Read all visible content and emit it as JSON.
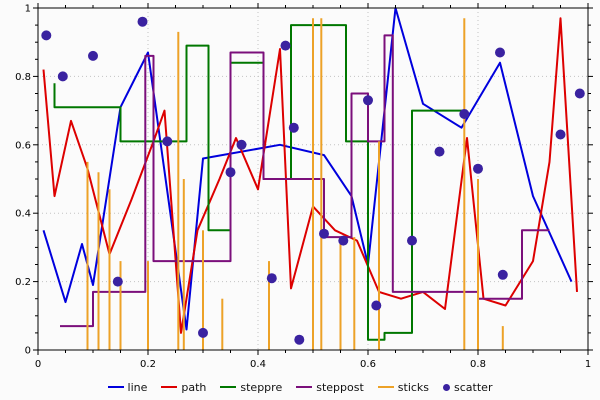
{
  "chart_data": {
    "type": "line",
    "title": "",
    "xlabel": "",
    "ylabel": "",
    "xlim": [
      0,
      1
    ],
    "ylim": [
      0,
      1
    ],
    "x_ticks": [
      0,
      0.2,
      0.4,
      0.6,
      0.8,
      1
    ],
    "y_ticks": [
      0,
      0.2,
      0.4,
      0.6,
      0.8,
      1
    ],
    "x_tick_labels": [
      "0",
      "0.2",
      "0.4",
      "0.6",
      "0.8",
      "1"
    ],
    "y_tick_labels": [
      "0",
      "0.2",
      "0.4",
      "0.6",
      "0.8",
      "1"
    ],
    "minor_tick_step": 0.05,
    "grid": true,
    "grid_style": "dotted",
    "frame": true,
    "legend_position": "bottom",
    "series": [
      {
        "name": "line",
        "style": "line",
        "color": "#0000dd",
        "points": [
          [
            0.01,
            0.35
          ],
          [
            0.05,
            0.14
          ],
          [
            0.08,
            0.31
          ],
          [
            0.1,
            0.19
          ],
          [
            0.15,
            0.71
          ],
          [
            0.2,
            0.87
          ],
          [
            0.27,
            0.06
          ],
          [
            0.3,
            0.56
          ],
          [
            0.44,
            0.6
          ],
          [
            0.52,
            0.57
          ],
          [
            0.57,
            0.45
          ],
          [
            0.6,
            0.25
          ],
          [
            0.65,
            1.0
          ],
          [
            0.7,
            0.72
          ],
          [
            0.77,
            0.65
          ],
          [
            0.84,
            0.84
          ],
          [
            0.9,
            0.45
          ],
          [
            0.97,
            0.2
          ]
        ]
      },
      {
        "name": "path",
        "style": "path",
        "color": "#dd0000",
        "points": [
          [
            0.01,
            0.82
          ],
          [
            0.03,
            0.45
          ],
          [
            0.06,
            0.67
          ],
          [
            0.09,
            0.53
          ],
          [
            0.13,
            0.28
          ],
          [
            0.17,
            0.44
          ],
          [
            0.21,
            0.61
          ],
          [
            0.23,
            0.7
          ],
          [
            0.26,
            0.05
          ],
          [
            0.29,
            0.35
          ],
          [
            0.33,
            0.5
          ],
          [
            0.36,
            0.62
          ],
          [
            0.4,
            0.47
          ],
          [
            0.44,
            0.88
          ],
          [
            0.46,
            0.18
          ],
          [
            0.5,
            0.42
          ],
          [
            0.54,
            0.35
          ],
          [
            0.58,
            0.32
          ],
          [
            0.62,
            0.17
          ],
          [
            0.66,
            0.15
          ],
          [
            0.7,
            0.17
          ],
          [
            0.74,
            0.12
          ],
          [
            0.78,
            0.62
          ],
          [
            0.81,
            0.15
          ],
          [
            0.85,
            0.13
          ],
          [
            0.9,
            0.26
          ],
          [
            0.93,
            0.55
          ],
          [
            0.95,
            0.97
          ],
          [
            0.98,
            0.17
          ]
        ]
      },
      {
        "name": "steppre",
        "style": "steppre",
        "color": "#007700",
        "points": [
          [
            0.03,
            0.78
          ],
          [
            0.15,
            0.71
          ],
          [
            0.27,
            0.61
          ],
          [
            0.31,
            0.89
          ],
          [
            0.35,
            0.35
          ],
          [
            0.41,
            0.84
          ],
          [
            0.46,
            0.5
          ],
          [
            0.56,
            0.95
          ],
          [
            0.6,
            0.61
          ],
          [
            0.63,
            0.03
          ],
          [
            0.68,
            0.05
          ],
          [
            0.78,
            0.7
          ]
        ]
      },
      {
        "name": "steppost",
        "style": "steppost",
        "color": "#7b0f7b",
        "points": [
          [
            0.04,
            0.07
          ],
          [
            0.1,
            0.17
          ],
          [
            0.195,
            0.86
          ],
          [
            0.21,
            0.26
          ],
          [
            0.35,
            0.87
          ],
          [
            0.41,
            0.5
          ],
          [
            0.52,
            0.33
          ],
          [
            0.57,
            0.75
          ],
          [
            0.6,
            0.61
          ],
          [
            0.63,
            0.92
          ],
          [
            0.645,
            0.17
          ],
          [
            0.8,
            0.15
          ],
          [
            0.88,
            0.35
          ],
          [
            0.93,
            0.35
          ]
        ]
      },
      {
        "name": "sticks",
        "style": "sticks",
        "color": "#eda227",
        "points": [
          [
            0.09,
            0.55
          ],
          [
            0.11,
            0.52
          ],
          [
            0.13,
            0.47
          ],
          [
            0.15,
            0.26
          ],
          [
            0.2,
            0.26
          ],
          [
            0.255,
            0.93
          ],
          [
            0.265,
            0.5
          ],
          [
            0.3,
            0.35
          ],
          [
            0.335,
            0.15
          ],
          [
            0.42,
            0.26
          ],
          [
            0.5,
            0.97
          ],
          [
            0.515,
            0.97
          ],
          [
            0.55,
            0.33
          ],
          [
            0.575,
            0.33
          ],
          [
            0.62,
            0.61
          ],
          [
            0.775,
            0.97
          ],
          [
            0.8,
            0.5
          ],
          [
            0.845,
            0.07
          ]
        ]
      },
      {
        "name": "scatter",
        "style": "scatter",
        "color": "#3a22a0",
        "points": [
          [
            0.015,
            0.92
          ],
          [
            0.045,
            0.8
          ],
          [
            0.1,
            0.86
          ],
          [
            0.145,
            0.2
          ],
          [
            0.19,
            0.96
          ],
          [
            0.235,
            0.61
          ],
          [
            0.3,
            0.05
          ],
          [
            0.35,
            0.52
          ],
          [
            0.37,
            0.6
          ],
          [
            0.425,
            0.21
          ],
          [
            0.45,
            0.89
          ],
          [
            0.465,
            0.65
          ],
          [
            0.475,
            0.03
          ],
          [
            0.52,
            0.34
          ],
          [
            0.555,
            0.32
          ],
          [
            0.6,
            0.73
          ],
          [
            0.615,
            0.13
          ],
          [
            0.68,
            0.32
          ],
          [
            0.73,
            0.58
          ],
          [
            0.775,
            0.69
          ],
          [
            0.8,
            0.53
          ],
          [
            0.84,
            0.87
          ],
          [
            0.845,
            0.22
          ],
          [
            0.95,
            0.63
          ],
          [
            0.985,
            0.75
          ]
        ]
      }
    ]
  }
}
